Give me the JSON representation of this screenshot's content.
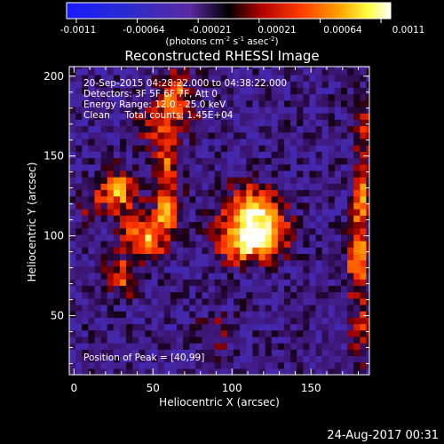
{
  "chart_data": {
    "type": "heatmap",
    "title": "Reconstructed RHESSI Image",
    "xlabel": "Heliocentric X (arcsec)",
    "ylabel": "Heliocentric Y (arcsec)",
    "xlim": [
      -3,
      187
    ],
    "ylim": [
      13,
      206
    ],
    "x_ticks": [
      0,
      50,
      100,
      150
    ],
    "y_ticks": [
      50,
      100,
      150,
      200
    ],
    "colorbar": {
      "ticks": [
        "-0.0011",
        "-0.00064",
        "-0.00021",
        "0.00021",
        "0.00064",
        "0.0011"
      ],
      "range": [
        -0.0011,
        0.0011
      ],
      "unit_label": "(photons cm",
      "unit_sup1": "-2",
      "unit_mid1": " s",
      "unit_sup2": "-1",
      "unit_mid2": " asec",
      "unit_sup3": "-2",
      "unit_end": ")"
    },
    "annotations": [
      "20-Sep-2015 04:28:22.000 to 04:38:22.000",
      "Detectors: 3F 5F 6F 7F, Att 0",
      "Energy Range: 12.0 - 25.0 keV",
      "Clean     Total counts: 1.45E+04"
    ],
    "peak_label": "Position of Peak = [40,99]",
    "peak": [
      40,
      99
    ],
    "sources": [
      {
        "x": 45,
        "y": 100,
        "sx": 9,
        "sy": 9,
        "amp": 1.0
      },
      {
        "x": 28,
        "y": 128,
        "sx": 8,
        "sy": 9,
        "amp": 0.75
      },
      {
        "x": 30,
        "y": 75,
        "sx": 7,
        "sy": 8,
        "amp": 0.55
      },
      {
        "x": 60,
        "y": 115,
        "sx": 6,
        "sy": 7,
        "amp": 0.45
      },
      {
        "x": 58,
        "y": 145,
        "sx": 5,
        "sy": 22,
        "amp": 0.55
      },
      {
        "x": 65,
        "y": 185,
        "sx": 8,
        "sy": 12,
        "amp": 0.6
      },
      {
        "x": 45,
        "y": 170,
        "sx": 7,
        "sy": 8,
        "amp": 0.35
      },
      {
        "x": 10,
        "y": 120,
        "sx": 6,
        "sy": 7,
        "amp": 0.3
      },
      {
        "x": 113,
        "y": 115,
        "sx": 13,
        "sy": 11,
        "amp": 0.95
      },
      {
        "x": 108,
        "y": 95,
        "sx": 11,
        "sy": 9,
        "amp": 0.8
      },
      {
        "x": 125,
        "y": 100,
        "sx": 8,
        "sy": 8,
        "amp": 0.55
      },
      {
        "x": 180,
        "y": 85,
        "sx": 5,
        "sy": 16,
        "amp": 0.75
      },
      {
        "x": 182,
        "y": 125,
        "sx": 4,
        "sy": 16,
        "amp": 0.6
      },
      {
        "x": 184,
        "y": 170,
        "sx": 4,
        "sy": 14,
        "amp": 0.45
      },
      {
        "x": 182,
        "y": 40,
        "sx": 5,
        "sy": 12,
        "amp": 0.45
      },
      {
        "x": 90,
        "y": 40,
        "sx": 10,
        "sy": 8,
        "amp": 0.25
      }
    ]
  },
  "footer": {
    "timestamp": "24-Aug-2017 00:31"
  }
}
